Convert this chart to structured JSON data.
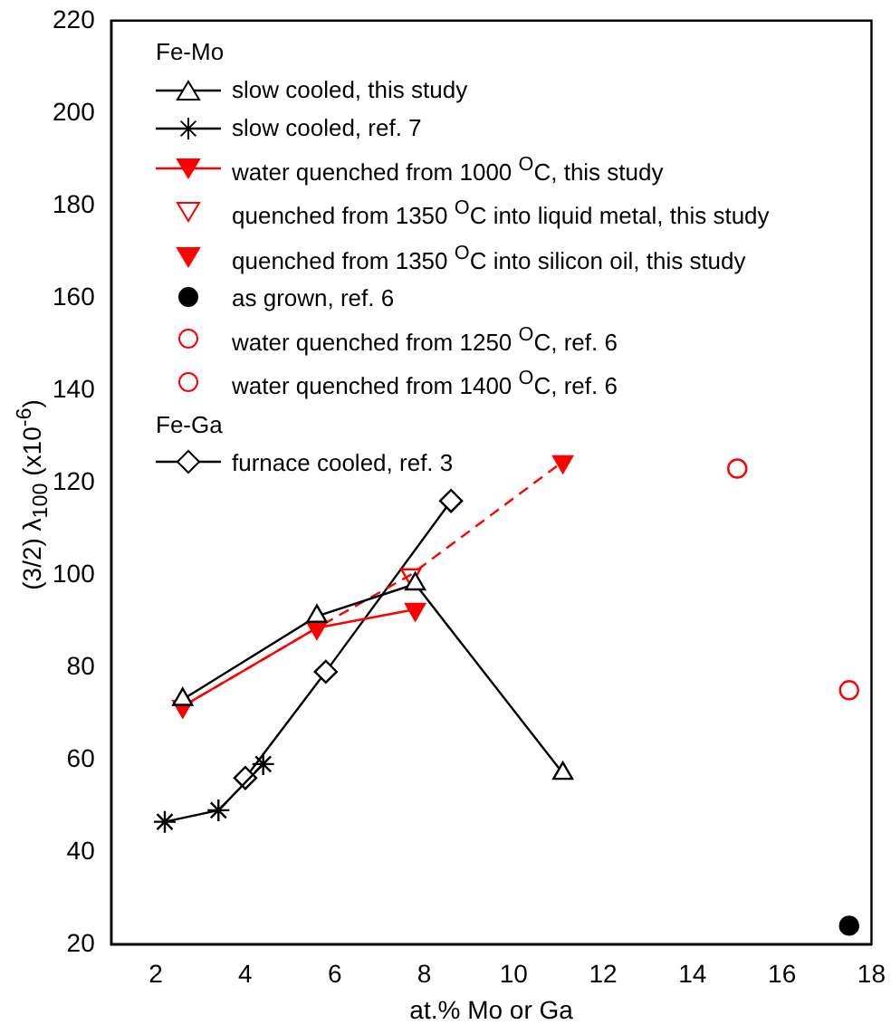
{
  "chart_data": {
    "type": "line",
    "xlabel": "at.% Mo or Ga",
    "ylabel": "(3/2) λ$_{100}$ (x10$^{-6}$)",
    "legend_title": "Fe-Mo",
    "annotations": [
      "Fe-Ga"
    ],
    "legend": "top left",
    "grid": false,
    "xlim": [
      1,
      18
    ],
    "xticks": [
      2,
      4,
      6,
      8,
      10,
      12,
      14,
      16,
      18
    ],
    "ylim": [
      20,
      220
    ],
    "yticks": [
      20,
      40,
      60,
      80,
      100,
      120,
      140,
      160,
      180,
      200,
      220
    ],
    "series": [
      {
        "name": "slow cooled, this study",
        "color": "#000000",
        "marker": "triangle",
        "line_style": "solid",
        "x": [
          2.6,
          5.6,
          7.8,
          11.1
        ],
        "values": [
          73,
          91,
          98,
          57
        ]
      },
      {
        "name": "slow cooled, ref. 7",
        "color": "#000000",
        "marker": "cross",
        "line_style": "solid",
        "x": [
          2.2,
          3.4,
          4.4
        ],
        "values": [
          46.5,
          49,
          59
        ]
      },
      {
        "name": "water quenched from 1000 $^{O}$C, this study",
        "color": "#ff0000",
        "marker": "triangle_down",
        "line_style": "solid",
        "x": [
          2.6,
          5.6,
          7.8
        ],
        "values": [
          71.5,
          88.5,
          92.5
        ]
      },
      {
        "color": "#ff0000",
        "marker": "none",
        "line_style": "dashed",
        "x": [
          2.6,
          5.6,
          7.7,
          11.1
        ],
        "values": [
          71.5,
          88.5,
          100,
          124.5
        ]
      },
      {
        "name": "quenched from 1350 $^{O}$C into liquid metal, this study",
        "type": "scatter",
        "color": "#ff0000",
        "marker": "triangle_down_open",
        "x": [
          7.7
        ],
        "values": [
          100
        ]
      },
      {
        "name": "quenched from 1350 $^{O}$C into silicon oil, this study",
        "type": "scatter",
        "color": "#ff0000",
        "marker": "triangle_down_half",
        "x": [
          11.1
        ],
        "values": [
          124.5
        ]
      },
      {
        "name": "as grown, ref. 6",
        "type": "scatter",
        "color": "#000000",
        "marker": "circle",
        "x": [
          17.5
        ],
        "values": [
          24
        ]
      },
      {
        "name": "water quenched from 1250 $^{O}$C, ref. 6",
        "type": "scatter",
        "color": "#ff0000",
        "marker": "circle_half_left",
        "x": [
          15
        ],
        "values": [
          123
        ]
      },
      {
        "name": "water quenched from 1400 $^{O}$C, ref. 6",
        "type": "scatter",
        "color": "#ff0000",
        "marker": "circle_half_top",
        "x": [
          17.5
        ],
        "values": [
          75
        ]
      },
      {
        "name": "furnace cooled, ref. 3",
        "color": "#000000",
        "marker": "diamond",
        "line_style": "solid",
        "x": [
          4.0,
          5.8,
          8.6
        ],
        "values": [
          56,
          79,
          116
        ]
      }
    ]
  }
}
